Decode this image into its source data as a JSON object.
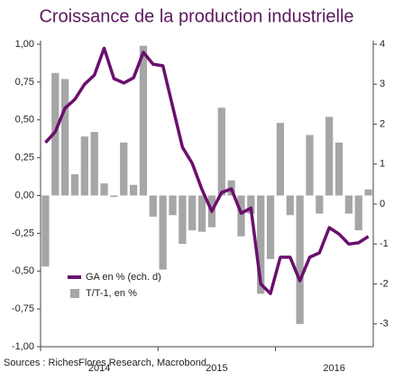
{
  "chart_data": {
    "type": "bar_line",
    "title": "Croissance de la production industrielle",
    "source": "Sources : RichesFlores Research, Macrobond",
    "categories": [
      null,
      null,
      null,
      null,
      null,
      null,
      null,
      null,
      null,
      null,
      null,
      null,
      null,
      null,
      null,
      null,
      null,
      null,
      null,
      null,
      null,
      null,
      null,
      null,
      null,
      null,
      null,
      null,
      null,
      null,
      null,
      null,
      null,
      null
    ],
    "years": [
      "2014",
      "2015",
      "2016"
    ],
    "series": [
      {
        "name": "T/T-1, en %",
        "color": "#a6a6a6",
        "kind": "bar",
        "values": [
          -0.47,
          0.81,
          0.77,
          0.14,
          0.39,
          0.42,
          0.08,
          -0.01,
          0.35,
          0.07,
          0.99,
          -0.14,
          -0.49,
          -0.13,
          -0.32,
          -0.23,
          -0.24,
          -0.21,
          0.58,
          0.1,
          -0.27,
          -0.12,
          -0.65,
          -0.42,
          0.48,
          -0.13,
          -0.85,
          0.4,
          -0.12,
          0.52,
          0.35,
          -0.12,
          -0.23,
          0.04
        ]
      },
      {
        "name": "GA en % (ech. d)",
        "color": "#6a0f6e",
        "kind": "line",
        "axis": "y2",
        "values": [
          1.54,
          1.81,
          2.4,
          2.62,
          3.0,
          3.23,
          3.9,
          3.14,
          3.03,
          3.16,
          3.8,
          3.5,
          3.46,
          2.44,
          1.42,
          1.02,
          0.36,
          -0.18,
          0.29,
          0.38,
          -0.23,
          -0.1,
          -2.0,
          -2.24,
          -1.33,
          -1.33,
          -1.92,
          -1.33,
          -1.22,
          -0.59,
          -0.75,
          -1.0,
          -0.97,
          -0.81
        ]
      }
    ],
    "ylim": [
      -1,
      1
    ],
    "yticks": [
      {
        "value": -1,
        "label": "-1,00"
      },
      {
        "value": -0.75,
        "label": "-0,75"
      },
      {
        "value": -0.5,
        "label": "-0,50"
      },
      {
        "value": -0.25,
        "label": "-0,25"
      },
      {
        "value": 0,
        "label": "0,00"
      },
      {
        "value": 0.25,
        "label": "0,25"
      },
      {
        "value": 0.5,
        "label": "0,50"
      },
      {
        "value": 0.75,
        "label": "0,75"
      },
      {
        "value": 1,
        "label": "1,00"
      }
    ],
    "y2lim": [
      -3.57,
      4
    ],
    "y2ticks": [
      -3,
      -2,
      -1,
      0,
      1,
      2,
      3,
      4
    ],
    "legend": "lower left"
  }
}
